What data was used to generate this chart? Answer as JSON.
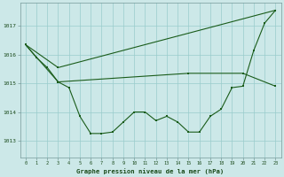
{
  "title": "Graphe pression niveau de la mer (hPa)",
  "bg_color": "#cce8e8",
  "line_color": "#1a5c1a",
  "grid_color": "#99cccc",
  "xlim": [
    -0.5,
    23.5
  ],
  "ylim": [
    1012.4,
    1017.8
  ],
  "yticks": [
    1013,
    1014,
    1015,
    1016,
    1017
  ],
  "xticks": [
    0,
    1,
    2,
    3,
    4,
    5,
    6,
    7,
    8,
    9,
    10,
    11,
    12,
    13,
    14,
    15,
    16,
    17,
    18,
    19,
    20,
    21,
    22,
    23
  ],
  "line1_x": [
    0,
    1,
    2,
    3,
    4,
    5,
    6,
    7,
    8,
    9,
    10,
    11,
    12,
    13,
    14,
    15,
    16,
    17,
    18,
    19,
    20,
    21,
    22,
    23
  ],
  "line1_y": [
    1016.35,
    1015.9,
    1015.55,
    1015.05,
    1014.85,
    1013.85,
    1013.25,
    1013.25,
    1013.3,
    1013.65,
    1014.0,
    1014.0,
    1013.7,
    1013.85,
    1013.65,
    1013.3,
    1013.3,
    1013.85,
    1014.1,
    1014.85,
    1014.9,
    1016.15,
    1017.1,
    1017.55
  ],
  "line2_x": [
    0,
    3,
    23
  ],
  "line2_y": [
    1016.35,
    1015.55,
    1017.55
  ],
  "line3_x": [
    0,
    3,
    15,
    20,
    23
  ],
  "line3_y": [
    1016.35,
    1015.05,
    1015.35,
    1015.35,
    1014.9
  ]
}
